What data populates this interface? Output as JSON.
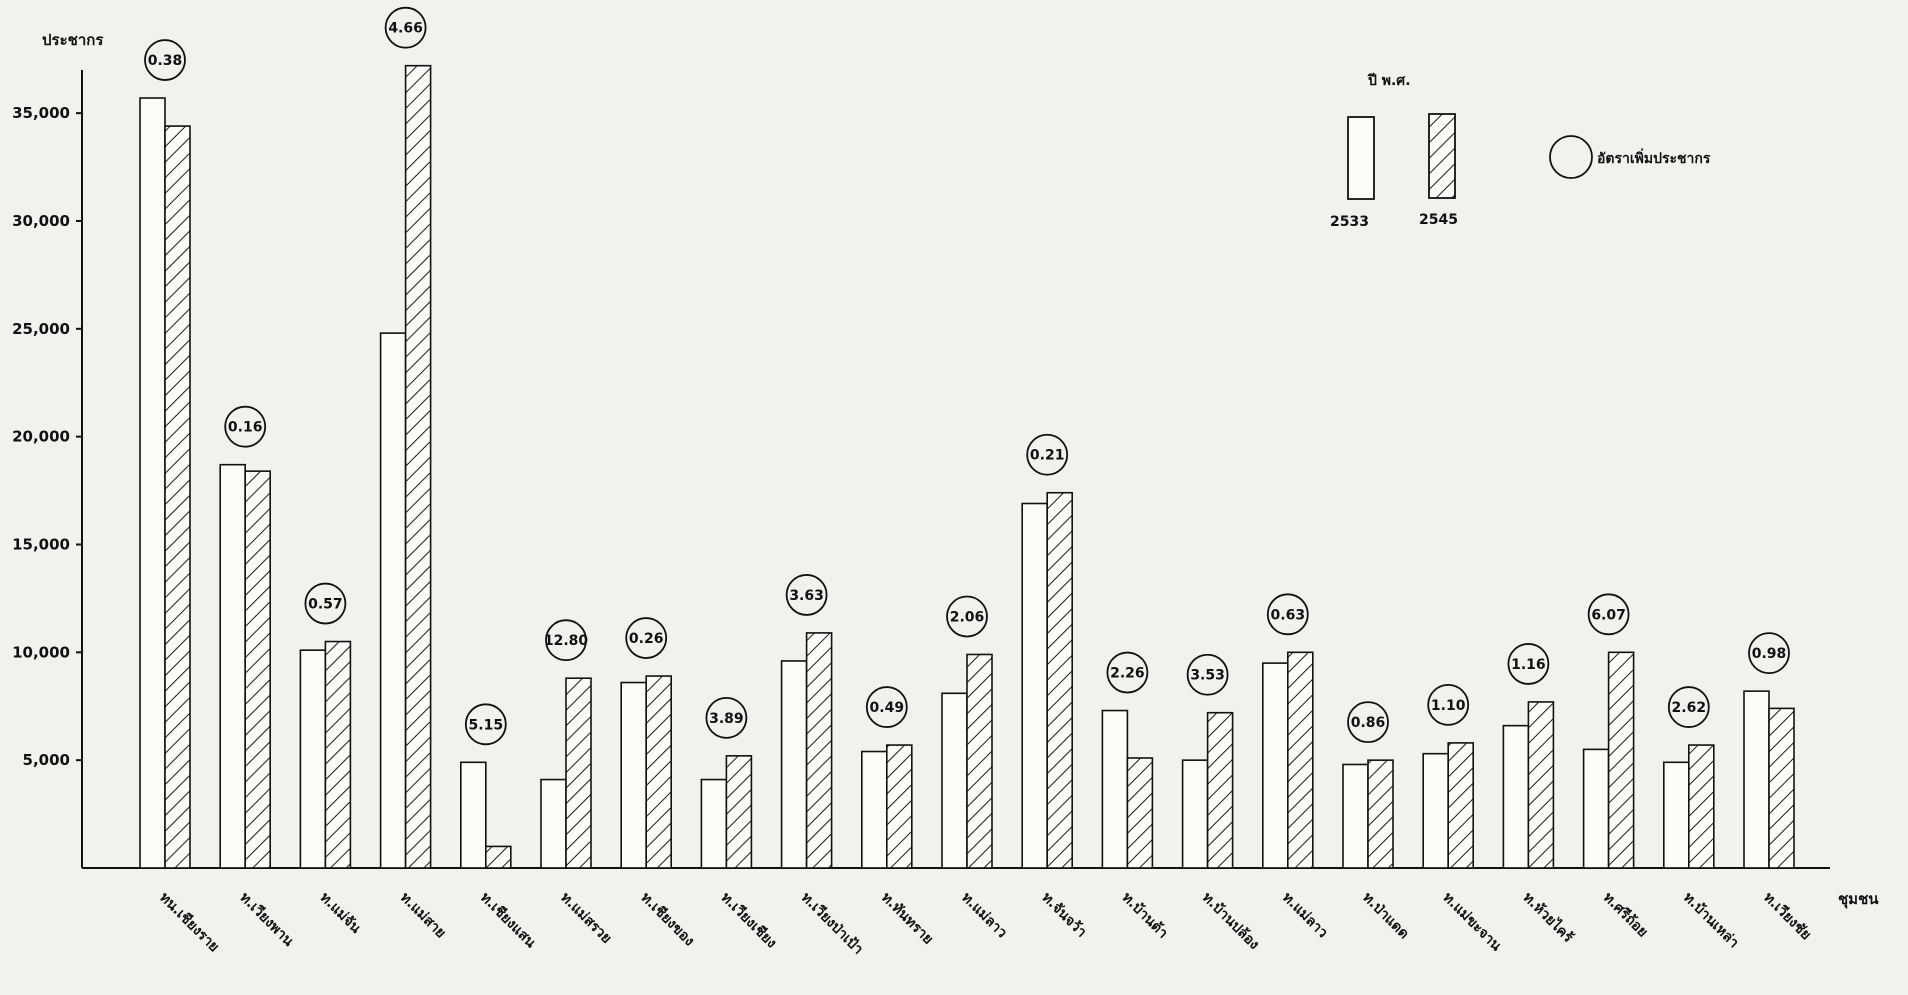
{
  "chart_data": {
    "type": "bar",
    "ylabel": "ประชากร",
    "xlabel": "ชุมชน",
    "ylim": [
      0,
      37000
    ],
    "yticks": [
      5000,
      10000,
      15000,
      20000,
      25000,
      30000,
      35000
    ],
    "ytick_labels": [
      "5,000",
      "10,000",
      "15,000",
      "20,000",
      "25,000",
      "30,000",
      "35,000"
    ],
    "categories": [
      "ทน.เชียงราย",
      "ท.เวียงพาน",
      "ท.แม่จัน",
      "ท.แม่สาย",
      "ท.เชียงแสน",
      "ท.แม่สรวย",
      "ท.เชียงของ",
      "ท.เวียงเชียง",
      "ท.เวียงป่าเป้า",
      "ท.ทันทราย",
      "ท.แม่ลาว",
      "ท.จันจว้า",
      "ท.บ้านต้า",
      "ท.บ้านปล้อง",
      "ท.แม่ลาว",
      "ท.ป่าแดด",
      "ท.แม่ขะจาน",
      "ท.ห้วยไคร้",
      "ท.ศรีถ้อย",
      "ท.บ้านเหล่า",
      "ท.เวียงชัย"
    ],
    "series": [
      {
        "name": "2533",
        "pattern": "plain",
        "values": [
          35700,
          18700,
          10100,
          24800,
          4900,
          4100,
          8600,
          4100,
          9600,
          5400,
          8100,
          16900,
          7300,
          5000,
          9500,
          4800,
          5300,
          6600,
          5500,
          4900,
          8200
        ]
      },
      {
        "name": "2545",
        "pattern": "hatched",
        "values": [
          34400,
          18400,
          10500,
          37200,
          1000,
          8800,
          8900,
          5200,
          10900,
          5700,
          9900,
          17400,
          5100,
          7200,
          10000,
          5000,
          5800,
          7700,
          10000,
          5700,
          7400
        ]
      }
    ],
    "growth_rates": [
      "0.38",
      "0.16",
      "0.57",
      "4.66",
      "5.15",
      "12.80",
      "0.26",
      "3.89",
      "3.63",
      "0.49",
      "2.06",
      "0.21",
      "2.26",
      "3.53",
      "0.63",
      "0.86",
      "1.10",
      "1.16",
      "6.07",
      "2.62",
      "0.98"
    ],
    "legend": {
      "title": "ปี พ.ศ.",
      "years": [
        "2533",
        "2545"
      ],
      "rate_label": "อัตราเพิ่มประชากร",
      "position": "top-right"
    }
  }
}
